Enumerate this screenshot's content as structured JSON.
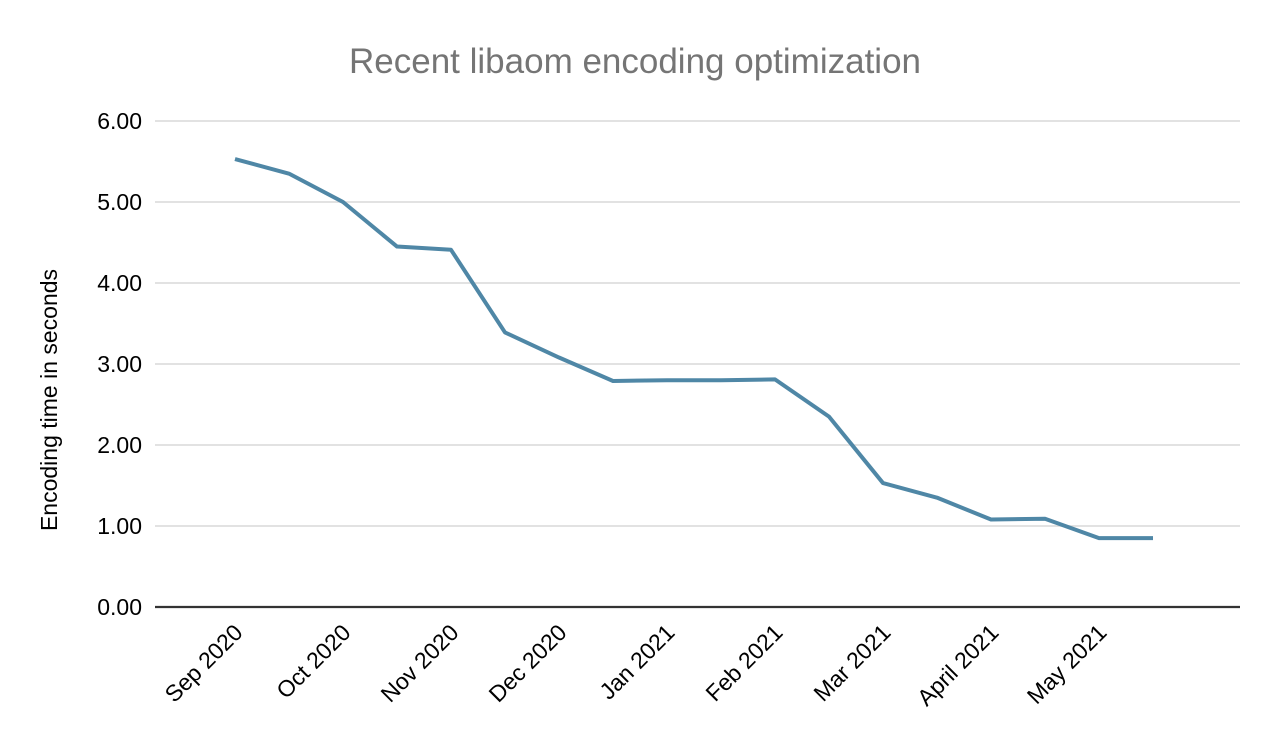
{
  "chart_data": {
    "type": "line",
    "title": "Recent libaom encoding optimization",
    "xlabel": "",
    "ylabel": "Encoding time in seconds",
    "x_tick_labels": [
      "Sep 2020",
      "Oct 2020",
      "Nov 2020",
      "Dec 2020",
      "Jan 2021",
      "Feb 2021",
      "Mar 2021",
      "April 2021",
      "May 2021"
    ],
    "points_per_x_label": 2,
    "series": [
      {
        "name": "Encoding time in seconds",
        "color": "#4f87a6",
        "values": [
          5.53,
          5.35,
          5.0,
          4.45,
          4.41,
          3.39,
          3.08,
          2.79,
          2.8,
          2.8,
          2.81,
          2.35,
          1.53,
          1.35,
          1.08,
          1.09,
          0.85,
          0.85
        ]
      }
    ],
    "ylim": [
      0,
      6
    ],
    "ytick_step": 1.0,
    "ytick_labels": [
      "0.00",
      "1.00",
      "2.00",
      "3.00",
      "4.00",
      "5.00",
      "6.00"
    ],
    "grid": "horizontal",
    "legend": "none"
  },
  "colors": {
    "title": "#757575",
    "axis_labels": "#000000",
    "gridline": "#d9d9d9",
    "axis_line": "#333333",
    "series": "#4f87a6",
    "background": "#ffffff"
  }
}
